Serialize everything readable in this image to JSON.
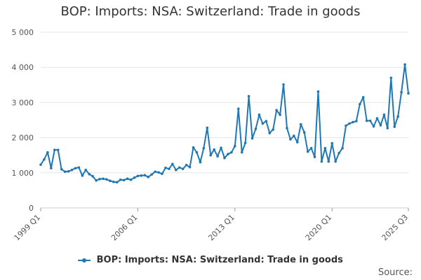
{
  "chart_data": {
    "type": "line",
    "title": "BOP: Imports: NSA: Switzerland: Trade in goods",
    "xlabel": "",
    "ylabel": "",
    "ylim": [
      0,
      5000
    ],
    "y_ticks": [
      0,
      1000,
      2000,
      3000,
      4000,
      5000
    ],
    "y_tick_labels": [
      "0",
      "1 000",
      "2 000",
      "3 000",
      "4 000",
      "5 000"
    ],
    "x_tick_labels": [
      "1999 Q1",
      "2006 Q1",
      "2013 Q1",
      "2020 Q1",
      "2025 Q3"
    ],
    "x_tick_positions": [
      0,
      28,
      56,
      84,
      106
    ],
    "grid": true,
    "legend_position": "bottom",
    "color": "#1f77b4",
    "series": [
      {
        "name": "BOP: Imports: NSA: Switzerland: Trade in goods",
        "values": [
          1230,
          1380,
          1580,
          1130,
          1650,
          1650,
          1100,
          1030,
          1040,
          1080,
          1130,
          1150,
          920,
          1080,
          960,
          900,
          780,
          820,
          830,
          810,
          770,
          740,
          730,
          800,
          790,
          830,
          800,
          860,
          910,
          920,
          930,
          880,
          950,
          1030,
          1010,
          970,
          1140,
          1110,
          1250,
          1080,
          1150,
          1110,
          1220,
          1160,
          1720,
          1580,
          1300,
          1700,
          2280,
          1500,
          1660,
          1470,
          1710,
          1420,
          1530,
          1580,
          1760,
          2820,
          1580,
          1850,
          3180,
          1980,
          2250,
          2650,
          2400,
          2470,
          2130,
          2230,
          2780,
          2650,
          3510,
          2270,
          1950,
          2050,
          1870,
          2380,
          2150,
          1600,
          1700,
          1450,
          3310,
          1320,
          1700,
          1320,
          1840,
          1320,
          1560,
          1700,
          2340,
          2400,
          2440,
          2470,
          2950,
          3150,
          2480,
          2480,
          2320,
          2550,
          2350,
          2650,
          2270,
          3700,
          2310,
          2600,
          3290,
          4080,
          3260
        ]
      }
    ]
  },
  "source_label": "Source:"
}
